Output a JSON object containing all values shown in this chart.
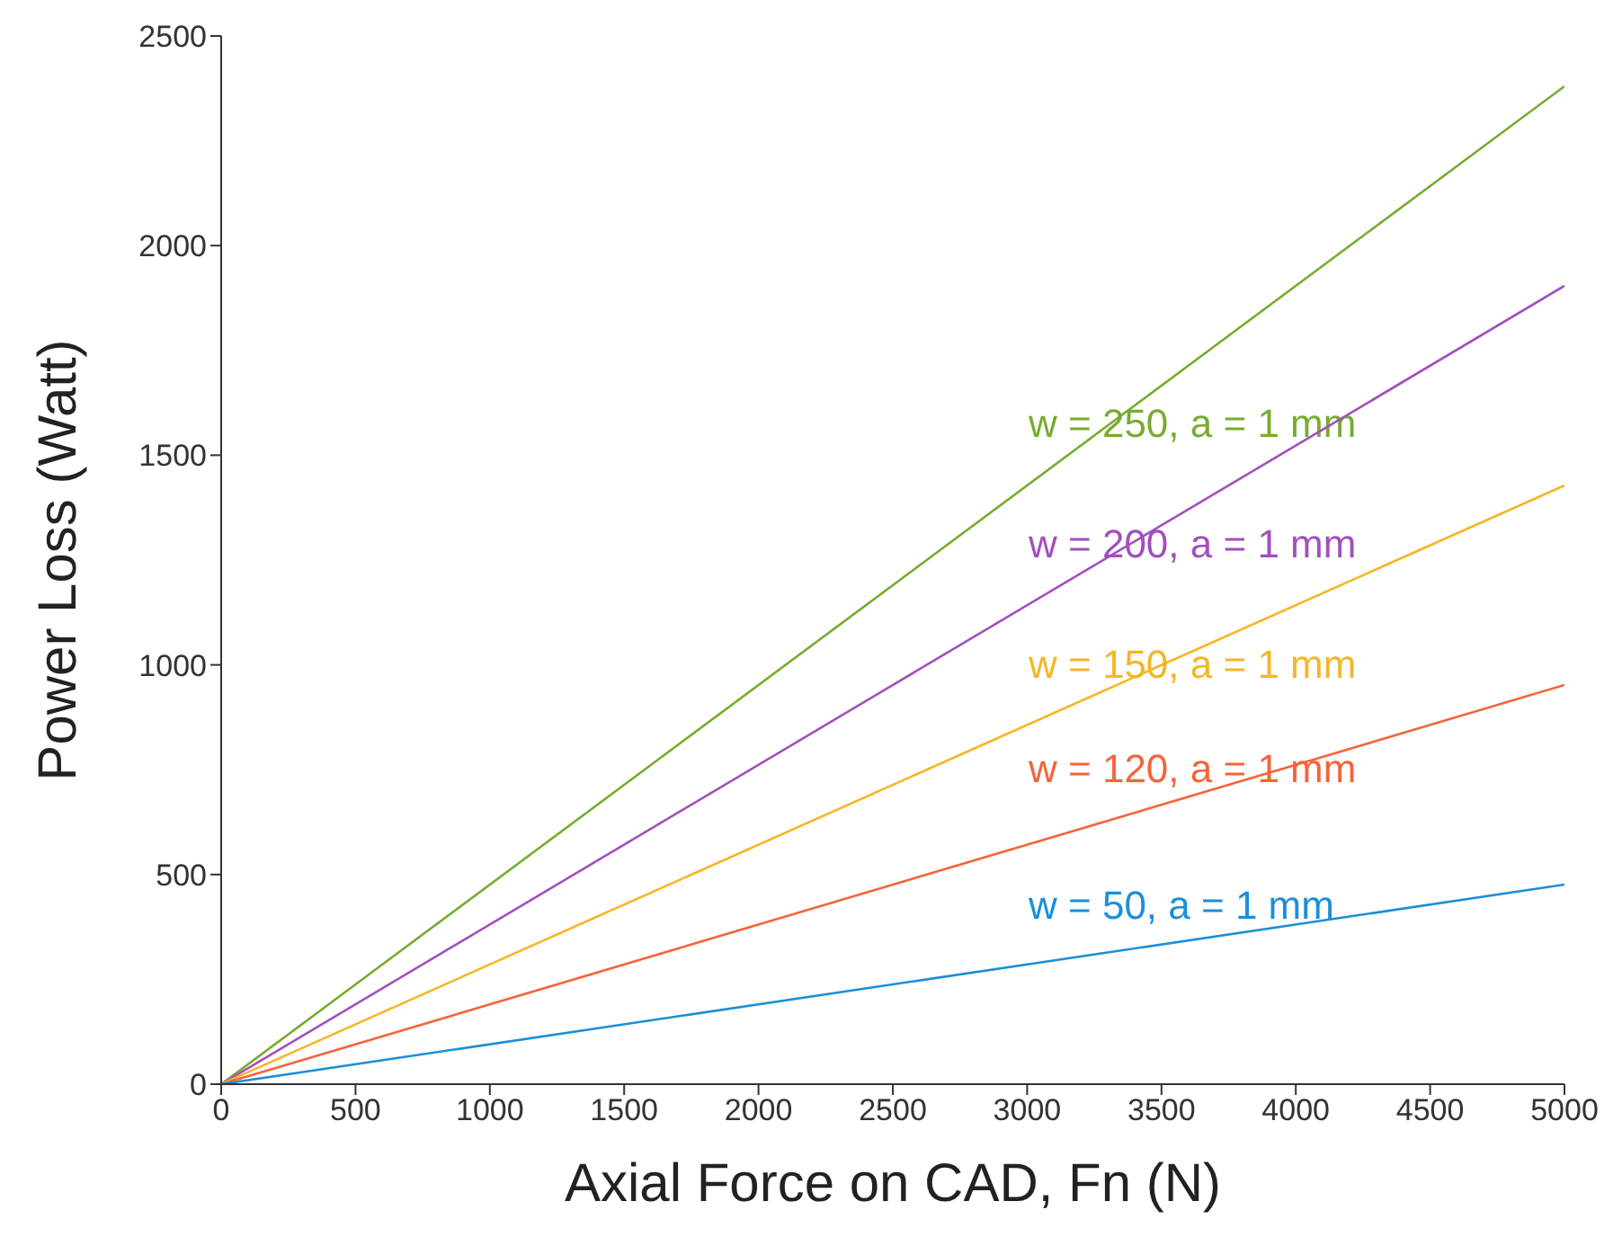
{
  "chart_data": {
    "type": "line",
    "xlabel": "Axial Force on CAD, Fn (N)",
    "ylabel": "Power Loss (Watt)",
    "x": [
      0,
      5000
    ],
    "series": [
      {
        "name": "w = 250, a = 1 mm",
        "color": "#77ac30",
        "values": [
          0,
          2380
        ]
      },
      {
        "name": "w = 200, a = 1 mm",
        "color": "#a24fbd",
        "values": [
          0,
          1904
        ]
      },
      {
        "name": "w = 150, a = 1 mm",
        "color": "#f5b626",
        "values": [
          0,
          1428
        ]
      },
      {
        "name": "w = 120, a = 1 mm",
        "color": "#f5643a",
        "values": [
          0,
          952
        ]
      },
      {
        "name": "w = 50, a = 1 mm",
        "color": "#1a8fd8",
        "values": [
          0,
          476
        ]
      }
    ],
    "xlim": [
      0,
      5000
    ],
    "xticks": [
      0,
      500,
      1000,
      1500,
      2000,
      2500,
      3000,
      3500,
      4000,
      4500,
      5000
    ],
    "ylim": [
      0,
      2500
    ],
    "yticks": [
      0,
      500,
      1000,
      1500,
      2000,
      2500
    ],
    "grid": false,
    "legend": false,
    "marker": "none",
    "line_style": "solid"
  }
}
